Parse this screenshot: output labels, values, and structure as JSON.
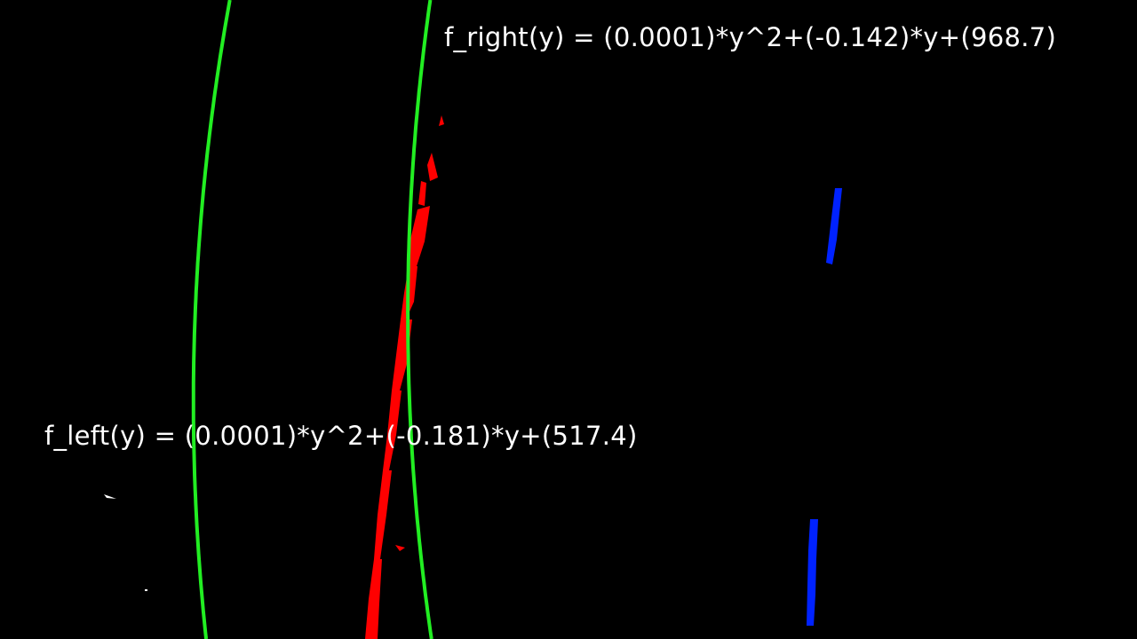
{
  "equations": {
    "right": "f_right(y) = (0.0001)*y^2+(-0.142)*y+(968.7)",
    "left": "f_left(y) = (0.0001)*y^2+(-0.181)*y+(517.4)"
  },
  "fits": {
    "left": {
      "a": 0.0001,
      "b": -0.181,
      "c": 517.4
    },
    "right": {
      "a": 0.0001,
      "b": -0.142,
      "c": 968.7
    }
  },
  "colors": {
    "background": "#000000",
    "fit_line": "#22ee22",
    "left_pixels": "#ff0000",
    "right_pixels": "#0022ff",
    "text": "#ffffff"
  }
}
